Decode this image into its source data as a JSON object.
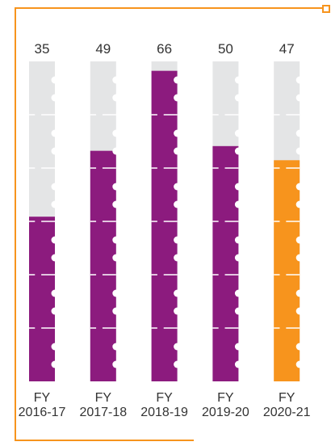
{
  "chart_data": {
    "type": "bar",
    "categories": [
      "FY 2016-17",
      "FY 2017-18",
      "FY 2018-19",
      "FY 2019-20",
      "FY 2020-21"
    ],
    "values": [
      35,
      49,
      66,
      50,
      47
    ],
    "colors": [
      "#8c1b7e",
      "#8c1b7e",
      "#8c1b7e",
      "#8c1b7e",
      "#f7941d"
    ],
    "ylim": [
      0,
      68
    ],
    "track_color": "#e4e5e6"
  }
}
